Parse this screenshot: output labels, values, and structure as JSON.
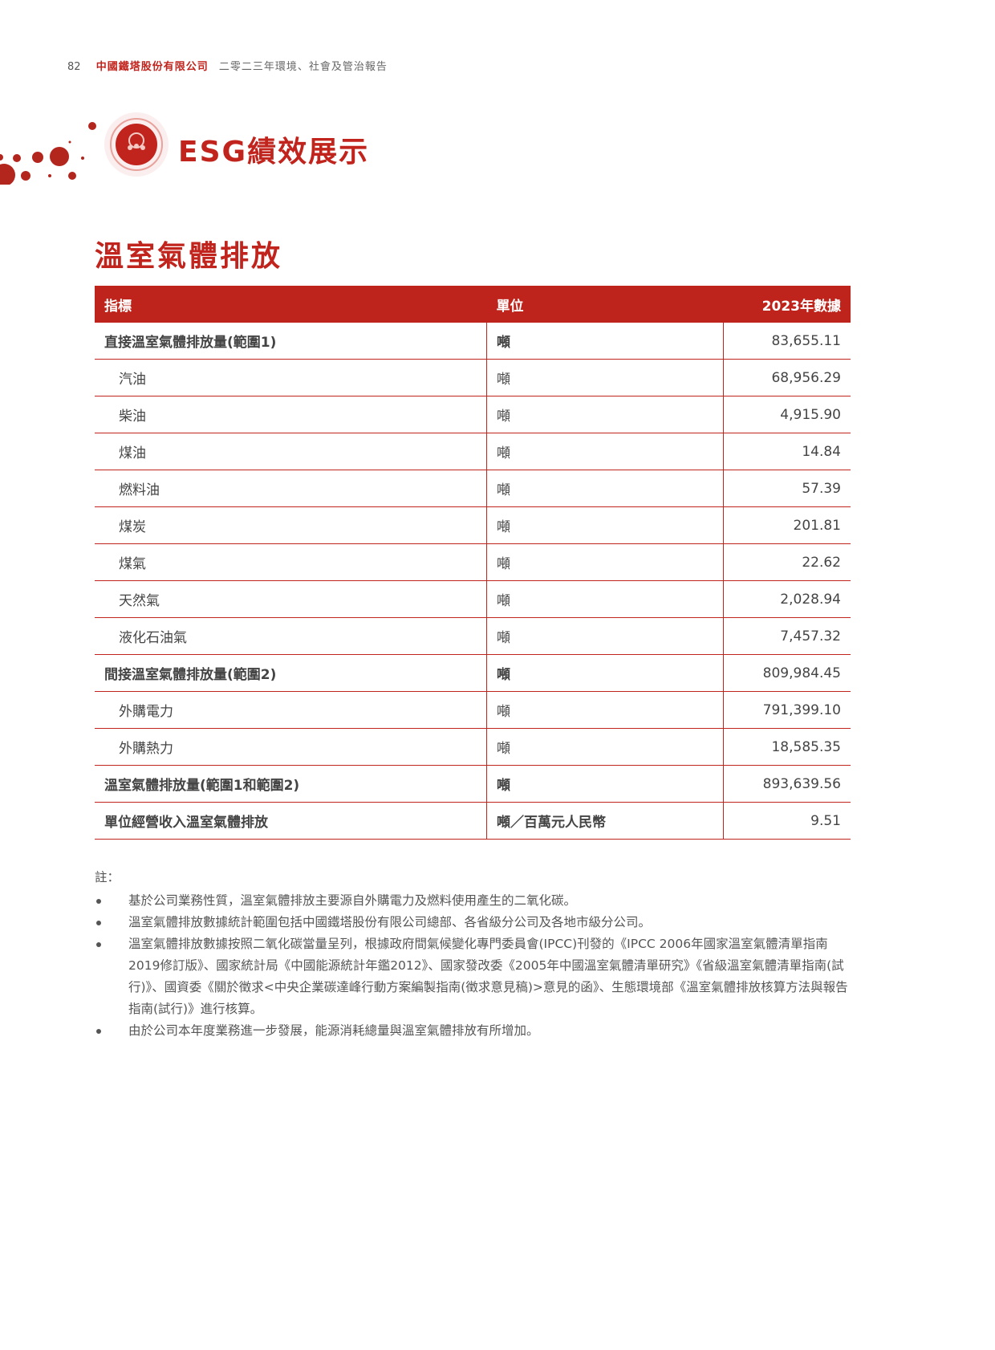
{
  "header": {
    "page_number": "82",
    "company": "中國鐵塔股份有限公司",
    "report": "二零二三年環境、社會及管治報告"
  },
  "banner": {
    "title": "ESG績效展示",
    "icon": "people-gear-icon",
    "brand_color": "#c0241c"
  },
  "section": {
    "title": "溫室氣體排放"
  },
  "table": {
    "headers": [
      "指標",
      "單位",
      "2023年數據"
    ],
    "rows": [
      {
        "indicator": "直接溫室氣體排放量(範圍1)",
        "unit": "噸",
        "value": "83,655.11",
        "bold": true
      },
      {
        "indicator": "汽油",
        "unit": "噸",
        "value": "68,956.29"
      },
      {
        "indicator": "柴油",
        "unit": "噸",
        "value": "4,915.90"
      },
      {
        "indicator": "煤油",
        "unit": "噸",
        "value": "14.84"
      },
      {
        "indicator": "燃料油",
        "unit": "噸",
        "value": "57.39"
      },
      {
        "indicator": "煤炭",
        "unit": "噸",
        "value": "201.81"
      },
      {
        "indicator": "煤氣",
        "unit": "噸",
        "value": "22.62"
      },
      {
        "indicator": "天然氣",
        "unit": "噸",
        "value": "2,028.94"
      },
      {
        "indicator": "液化石油氣",
        "unit": "噸",
        "value": "7,457.32"
      },
      {
        "indicator": "間接溫室氣體排放量(範圍2)",
        "unit": "噸",
        "value": "809,984.45",
        "bold": true
      },
      {
        "indicator": "外購電力",
        "unit": "噸",
        "value": "791,399.10"
      },
      {
        "indicator": "外購熱力",
        "unit": "噸",
        "value": "18,585.35"
      },
      {
        "indicator": "溫室氣體排放量(範圍1和範圍2)",
        "unit": "噸",
        "value": "893,639.56",
        "bold": true
      },
      {
        "indicator": "單位經營收入溫室氣體排放",
        "unit": "噸／百萬元人民幣",
        "value": "9.51",
        "bold": true
      }
    ]
  },
  "notes": {
    "label": "註：",
    "items": [
      "基於公司業務性質，溫室氣體排放主要源自外購電力及燃料使用產生的二氧化碳。",
      "溫室氣體排放數據統計範圍包括中國鐵塔股份有限公司總部、各省級分公司及各地市級分公司。",
      "溫室氣體排放數據按照二氧化碳當量呈列，根據政府間氣候變化專門委員會(IPCC)刊發的《IPCC 2006年國家溫室氣體清單指南2019修訂版》、國家統計局《中國能源統計年鑑2012》、國家發改委《2005年中國溫室氣體清單研究》《省級溫室氣體清單指南(試行)》、國資委《關於徵求<中央企業碳達峰行動方案編製指南(徵求意見稿)>意見的函》、生態環境部《溫室氣體排放核算方法與報告指南(試行)》進行核算。",
      "由於公司本年度業務進一步發展，能源消耗總量與溫室氣體排放有所增加。"
    ]
  }
}
